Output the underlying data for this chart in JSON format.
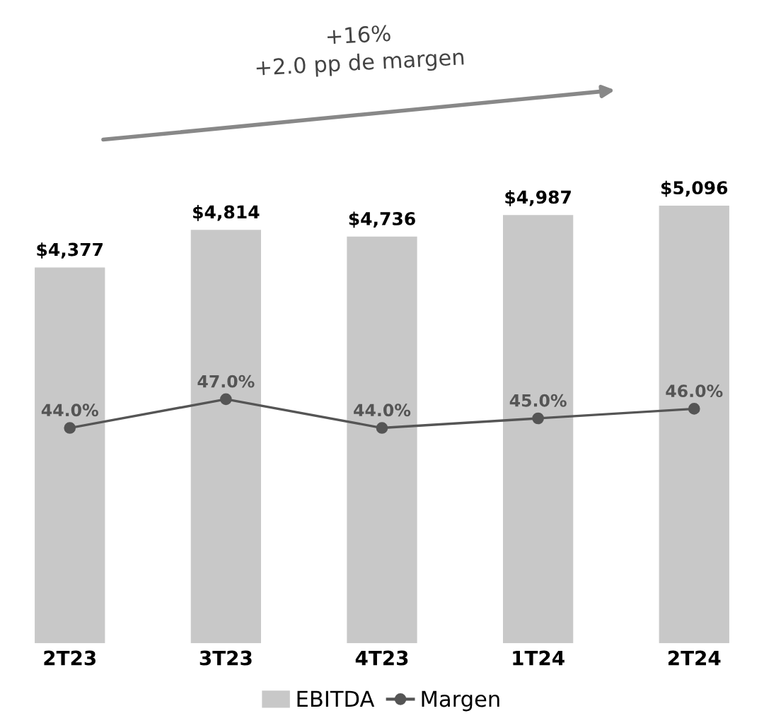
{
  "chart_data": {
    "type": "bar",
    "categories": [
      "2T23",
      "3T23",
      "4T23",
      "1T24",
      "2T24"
    ],
    "series": [
      {
        "name": "EBITDA",
        "color": "#c8c8c8",
        "values": [
          4377,
          4814,
          4736,
          4987,
          5096
        ],
        "value_labels": [
          "$4,377",
          "$4,814",
          "$4,736",
          "$4,987",
          "$5,096"
        ]
      },
      {
        "name": "Margen",
        "type": "line",
        "axis": "y2",
        "color": "#555555",
        "marker": "circle",
        "values": [
          44.0,
          47.0,
          44.0,
          45.0,
          46.0
        ],
        "value_labels": [
          "44.0%",
          "47.0%",
          "44.0%",
          "45.0%",
          "46.0%"
        ]
      }
    ],
    "annotations": [
      "+16%\n+2.0 pp de margen"
    ],
    "legend": "bottom",
    "grid": false,
    "tick_labels": "x"
  }
}
